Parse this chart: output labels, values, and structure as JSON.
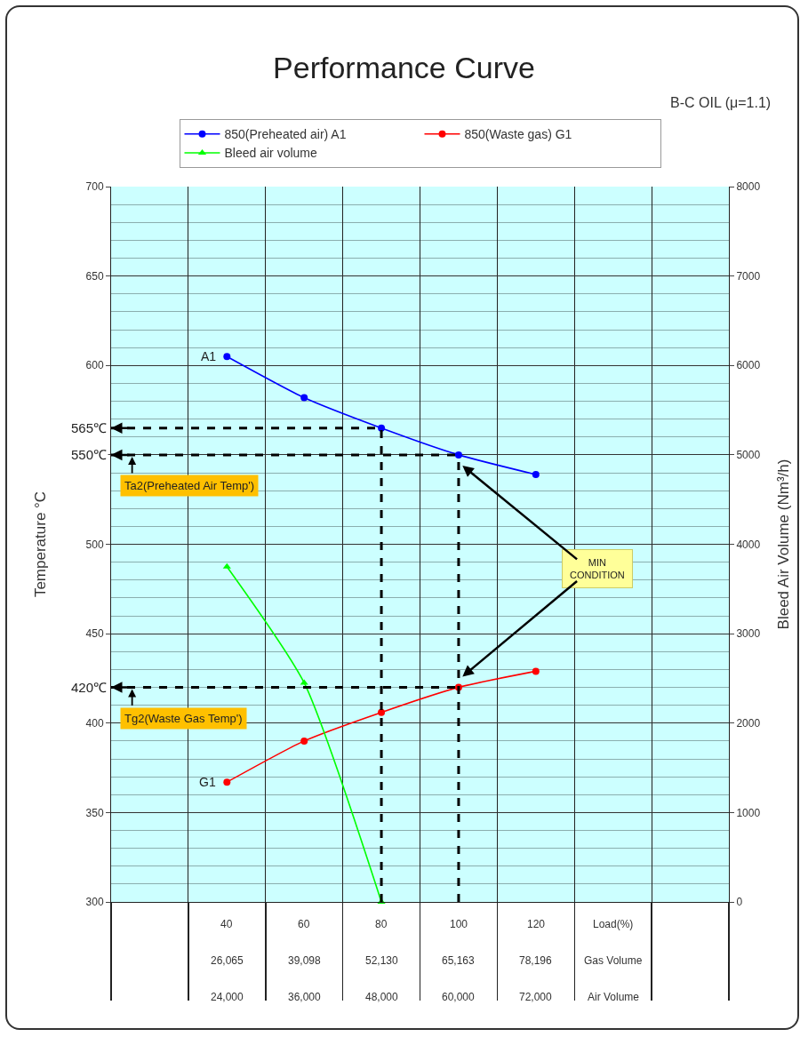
{
  "chart_data": {
    "type": "line",
    "title": "Performance Curve",
    "subtitle": "B-C OIL (μ=1.1)",
    "ylabel": "Temperature °C",
    "y2label": "Bleed Air Volume (Nm³/h)",
    "categories": [
      null,
      "40\n26,065\n24,000",
      "60\n39,098\n36,000",
      "80\n52,130\n48,000",
      "100\n65,163\n60,000",
      "120\n78,196\n72,000",
      "Load(%)\nGas Volume\nAir Volume",
      null
    ],
    "series": [
      {
        "name": "850(Preheated air) A1",
        "color": "#0000ff",
        "marker": "circle",
        "values": [
          null,
          605,
          582,
          565,
          550,
          539,
          null,
          null
        ]
      },
      {
        "name": "850(Waste gas) G1",
        "color": "#ff0000",
        "marker": "circle",
        "values": [
          null,
          367,
          390,
          406,
          420,
          429,
          null,
          null
        ]
      },
      {
        "name": "Bleed air volume",
        "color": "#00ff00",
        "marker": "triangle",
        "axis": "y2",
        "values": [
          null,
          3750,
          2450,
          0,
          null,
          null,
          null,
          null
        ]
      }
    ],
    "ylim": [
      300,
      700
    ],
    "yticks": [
      300,
      350,
      400,
      450,
      500,
      {
        "value": 550,
        "label": null
      },
      600,
      650,
      700
    ],
    "y2lim": [
      0,
      8000
    ],
    "y2ticks": [
      0,
      1000,
      2000,
      3000,
      4000,
      5000,
      6000,
      7000,
      8000
    ],
    "ref_lines": [
      {
        "axis": "y",
        "value": 565,
        "label": "565℃",
        "color": "#000000",
        "line_style": "dashed"
      },
      {
        "axis": "y",
        "value": 550,
        "label": "550℃",
        "color": "#000000",
        "line_style": "dashed"
      },
      {
        "axis": "y",
        "value": 420,
        "label": "420℃",
        "color": "#000000",
        "line_style": "dashed"
      },
      {
        "axis": "x",
        "value": "80\n52,130\n48,000",
        "color": "#000000",
        "line_style": "dashed"
      },
      {
        "axis": "x",
        "value": "100\n65,163\n60,000",
        "color": "#000000",
        "line_style": "dashed"
      }
    ],
    "annotations": [
      {
        "text": "A1",
        "x": "40\n26,065\n24,000",
        "y": 605
      },
      {
        "text": "G1",
        "x": "40\n26,065\n24,000",
        "y": 367
      },
      {
        "text": "Ta2(Preheated Air Temp')",
        "y": 550
      },
      {
        "text": "Tg2(Waste Gas Temp')",
        "y": 420
      },
      "MIN\nCONDITION"
    ],
    "grid": true,
    "legend": "top"
  }
}
